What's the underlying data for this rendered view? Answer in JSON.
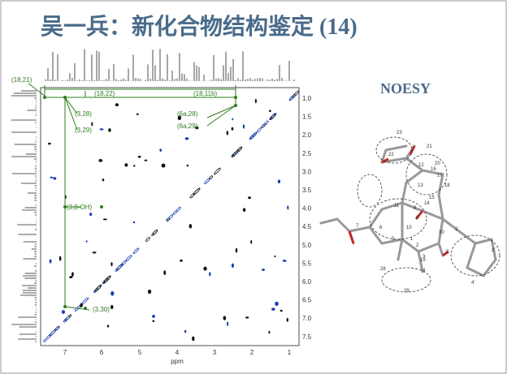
{
  "header": {
    "title": "吴一兵：新化合物结构鉴定 (14)"
  },
  "spectrum": {
    "cross_peak_labels": [
      "(18,21)",
      "(18,22)",
      "(18,11b)",
      "(3,28)",
      "(3,29)",
      "(6a,28)",
      "(6a,29)",
      "(3,8-OH)",
      "(3,30)"
    ],
    "x_axis": {
      "ticks": [
        "7",
        "6",
        "5",
        "4",
        "3",
        "2",
        "1"
      ],
      "label": "ppm"
    },
    "y_axis": {
      "ticks": [
        "1.0",
        "1.5",
        "2.0",
        "2.5",
        "3.0",
        "3.5",
        "4.0",
        "4.5",
        "5.0",
        "5.5",
        "6.0",
        "6.5",
        "7.0",
        "7.5"
      ]
    }
  },
  "structure": {
    "title": "NOESY",
    "atom_labels": [
      "23",
      "21",
      "22",
      "20",
      "12",
      "16",
      "17",
      "13",
      "18",
      "15",
      "14",
      "11",
      "8",
      "9",
      "6",
      "7",
      "10",
      "5",
      "1",
      "2",
      "30",
      "3",
      "4",
      "19",
      "28",
      "29",
      "1'",
      "2'",
      "3'",
      "4'"
    ]
  }
}
